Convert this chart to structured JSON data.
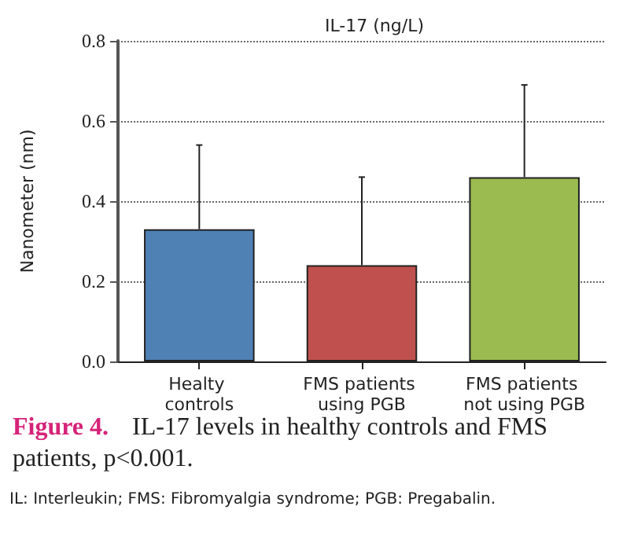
{
  "chart_data": {
    "type": "bar",
    "title": "IL-17 (ng/L)",
    "ylabel": "Nanometer (nm)",
    "categories": [
      "Healty controls",
      "FMS patients using PGB",
      "FMS patients not using PGB"
    ],
    "values": [
      0.33,
      0.24,
      0.46
    ],
    "colors": [
      "#4f81b5",
      "#c0504d",
      "#9bbb50"
    ],
    "errors": [
      [
        0.33,
        0.54
      ],
      [
        0.24,
        0.46
      ],
      [
        0.46,
        0.69
      ]
    ],
    "ylim": [
      0,
      0.8
    ],
    "yticks": [
      {
        "value": 0,
        "label": "0.0"
      },
      0.2,
      0.4,
      0.6,
      0.8
    ],
    "grid": "y",
    "annotations": [
      "Figure 4. IL-17 levels in healthy controls and FMS patients, p<0.001.",
      "IL: Interleukin; FMS: Fibromyalgia syndrome; PGB: Pregabalin."
    ]
  }
}
